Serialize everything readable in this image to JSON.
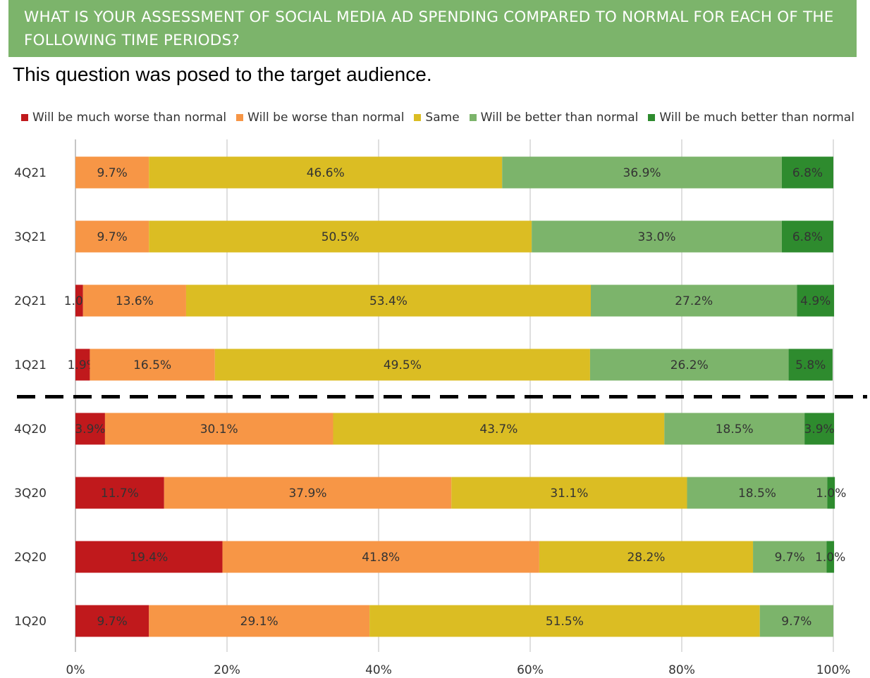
{
  "header": {
    "title_line1": "WHAT IS YOUR ASSESSMENT OF SOCIAL MEDIA AD SPENDING COMPARED TO NORMAL FOR EACH OF THE",
    "title_line2": "FOLLOWING TIME PERIODS?",
    "subtitle": "This question was posed to the target audience."
  },
  "chart_data": {
    "type": "bar",
    "orientation": "horizontal",
    "stacked": true,
    "categories": [
      "4Q21",
      "3Q21",
      "2Q21",
      "1Q21",
      "4Q20",
      "3Q20",
      "2Q20",
      "1Q20"
    ],
    "series": [
      {
        "name": "Will be much worse than normal",
        "color": "#c0191c",
        "values": [
          0,
          0,
          1.0,
          1.9,
          3.9,
          11.7,
          19.4,
          9.7
        ],
        "labels": [
          "",
          "",
          "1.0%",
          "1.9%",
          "3.9%",
          "11.7%",
          "19.4%",
          "9.7%"
        ]
      },
      {
        "name": "Will be worse than normal",
        "color": "#f79646",
        "values": [
          9.7,
          9.7,
          13.6,
          16.5,
          30.1,
          37.9,
          41.8,
          29.1
        ],
        "labels": [
          "9.7%",
          "9.7%",
          "13.6%",
          "16.5%",
          "30.1%",
          "37.9%",
          "41.8%",
          "29.1%"
        ]
      },
      {
        "name": "Same",
        "color": "#dbbd23",
        "values": [
          46.6,
          50.5,
          53.4,
          49.5,
          43.7,
          31.1,
          28.2,
          51.5
        ],
        "labels": [
          "46.6%",
          "50.5%",
          "53.4%",
          "49.5%",
          "43.7%",
          "31.1%",
          "28.2%",
          "51.5%"
        ]
      },
      {
        "name": "Will be better than normal",
        "color": "#7cb46b",
        "values": [
          36.9,
          33.0,
          27.2,
          26.2,
          18.5,
          18.5,
          9.7,
          9.7
        ],
        "labels": [
          "36.9%",
          "33.0%",
          "27.2%",
          "26.2%",
          "18.5%",
          "18.5%",
          "9.7%",
          "9.7%"
        ]
      },
      {
        "name": "Will be much better than normal",
        "color": "#2e8b2e",
        "values": [
          6.8,
          6.8,
          4.9,
          5.8,
          3.9,
          1.0,
          1.0,
          0
        ],
        "labels": [
          "6.8%",
          "6.8%",
          "4.9%",
          "5.8%",
          "3.9%",
          "1.0%",
          "1.0%",
          ""
        ]
      }
    ],
    "x_ticks": [
      "0%",
      "20%",
      "40%",
      "60%",
      "80%",
      "100%"
    ],
    "xlim": [
      0,
      100
    ],
    "grid": true,
    "legend_position": "top",
    "dashed_divider_between": [
      "1Q21",
      "4Q20"
    ]
  }
}
